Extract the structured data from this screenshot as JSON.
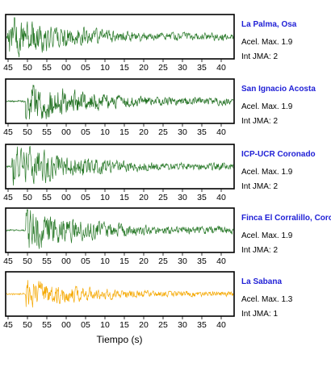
{
  "chart_data": {
    "type": "line",
    "xlabel": "Tiempo (s)",
    "x_tick_labels": [
      "45",
      "50",
      "55",
      "00",
      "05",
      "10",
      "15",
      "20",
      "25",
      "30",
      "35",
      "40"
    ],
    "panels": [
      {
        "station": "La Palma, Osa",
        "acel_label": "Acel. Max. 1.9",
        "jma_label": "Int JMA: 2",
        "color": "#2a7a2a",
        "amplitude": 1.9,
        "onset": 0.0
      },
      {
        "station": "San Ignacio Acosta",
        "acel_label": "Acel. Max. 1.9",
        "jma_label": "Int JMA: 2",
        "color": "#1f6f1f",
        "amplitude": 1.9,
        "onset": 0.08
      },
      {
        "station": "ICP-UCR Coronado",
        "acel_label": "Acel. Max. 1.9",
        "jma_label": "Int JMA: 2",
        "color": "#2a7a2a",
        "amplitude": 1.9,
        "onset": 0.02
      },
      {
        "station": "Finca El Corralillo, Corona",
        "acel_label": "Acel. Max. 1.9",
        "jma_label": "Int JMA: 2",
        "color": "#2a7a2a",
        "amplitude": 1.9,
        "onset": 0.08
      },
      {
        "station": "La Sabana",
        "acel_label": "Acel. Max. 1.3",
        "jma_label": "Int JMA: 1",
        "color": "#f5a800",
        "amplitude": 1.3,
        "onset": 0.08
      }
    ]
  }
}
